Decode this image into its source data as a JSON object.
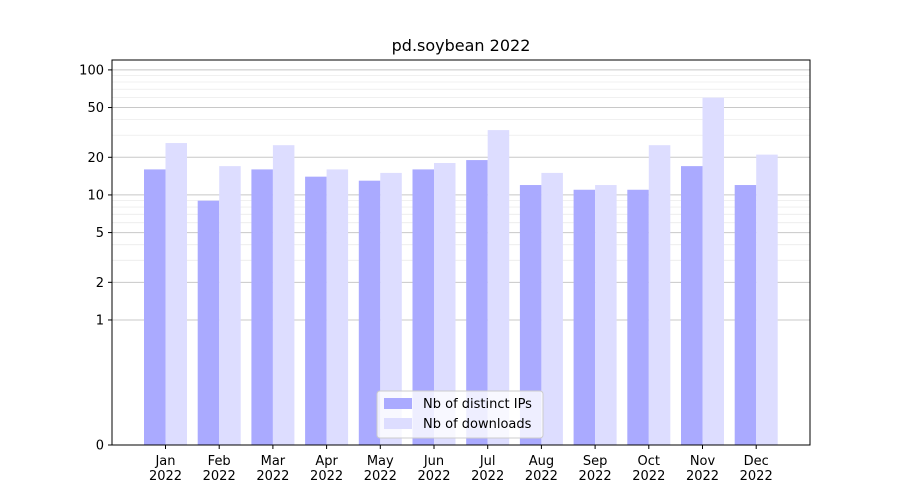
{
  "chart_data": {
    "type": "bar",
    "title": "pd.soybean 2022",
    "xlabel": "",
    "ylabel": "",
    "y_scale": "symlog",
    "ylim": [
      0,
      120
    ],
    "y_ticks": [
      0,
      1,
      2,
      5,
      10,
      20,
      50,
      100
    ],
    "grid": "horizontal",
    "legend_position": "lower-center",
    "categories": [
      "Jan 2022",
      "Feb 2022",
      "Mar 2022",
      "Apr 2022",
      "May 2022",
      "Jun 2022",
      "Jul 2022",
      "Aug 2022",
      "Sep 2022",
      "Oct 2022",
      "Nov 2022",
      "Dec 2022"
    ],
    "series": [
      {
        "name": "Nb of distinct IPs",
        "color": "#aaaaff",
        "values": [
          16,
          9,
          16,
          14,
          13,
          16,
          19,
          12,
          11,
          11,
          17,
          12
        ]
      },
      {
        "name": "Nb of downloads",
        "color": "#ddddff",
        "values": [
          26,
          17,
          25,
          16,
          15,
          18,
          33,
          15,
          12,
          25,
          60,
          21
        ]
      }
    ]
  }
}
